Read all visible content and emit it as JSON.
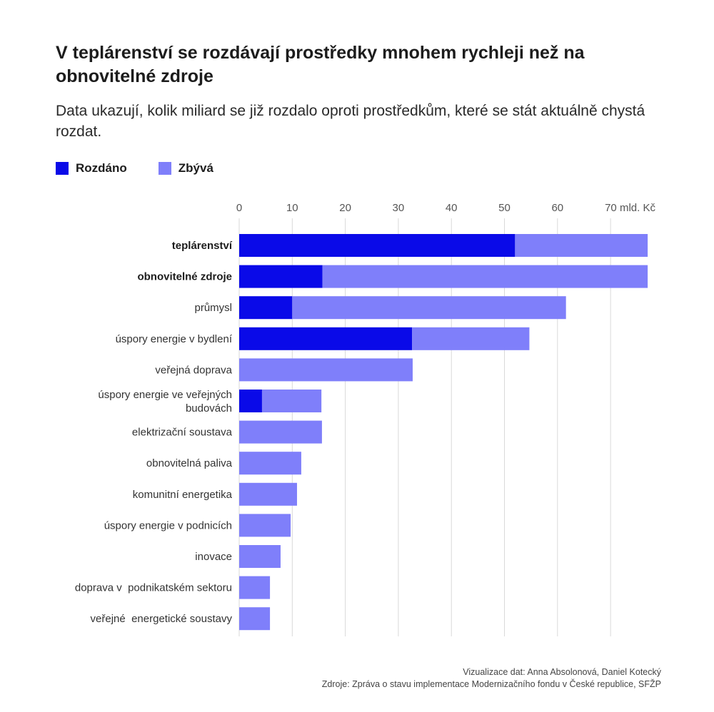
{
  "title": "V teplárenství se rozdávají prostředky mnohem rychleji než na obnovitelné zdroje",
  "subtitle": "Data ukazují, kolik miliard se již rozdalo oproti prostředkům, které se stát aktuálně chystá rozdat.",
  "legend": {
    "given": "Rozdáno",
    "remaining": "Zbývá"
  },
  "colors": {
    "given": "#0a0ae8",
    "remaining": "#7f7ffa",
    "grid": "#d9d9d9"
  },
  "footer": {
    "viz": "Vizualizace dat: Anna Absolonová, Daniel Kotecký",
    "source": "Zdroje: Zpráva o stavu implementace Modernizačního fondu v České republice, SFŽP"
  },
  "chart_data": {
    "type": "bar",
    "orientation": "horizontal",
    "stacked": true,
    "x_ticks": [
      "0",
      "10",
      "20",
      "30",
      "40",
      "50",
      "60",
      "70 mld. Kč"
    ],
    "x_tick_values": [
      0,
      10,
      20,
      30,
      40,
      50,
      60,
      70
    ],
    "xlim": [
      0,
      78
    ],
    "grid": true,
    "legend_position": "top-left",
    "categories": [
      {
        "label": "teplárenství",
        "bold": true
      },
      {
        "label": "obnovitelné zdroje",
        "bold": true
      },
      {
        "label": "průmysl",
        "bold": false
      },
      {
        "label": "úspory energie v bydlení",
        "bold": false
      },
      {
        "label": "veřejná doprava",
        "bold": false
      },
      {
        "label": "úspory energie ve veřejných budovách",
        "bold": false
      },
      {
        "label": "elektrizační soustava",
        "bold": false
      },
      {
        "label": "obnovitelná paliva",
        "bold": false
      },
      {
        "label": "komunitní energetika",
        "bold": false
      },
      {
        "label": "úspory energie v podnicích",
        "bold": false
      },
      {
        "label": "inovace",
        "bold": false
      },
      {
        "label": "doprava v  podnikatském sektoru",
        "bold": false
      },
      {
        "label": "veřejné  energetické soustavy",
        "bold": false
      }
    ],
    "series": [
      {
        "name": "Rozdáno",
        "values": [
          52.0,
          15.7,
          10.0,
          32.6,
          0,
          4.3,
          0,
          0,
          0,
          0,
          0,
          0,
          0
        ]
      },
      {
        "name": "Zbývá",
        "values": [
          25.0,
          61.3,
          51.6,
          22.1,
          32.7,
          11.2,
          15.6,
          11.7,
          10.9,
          9.7,
          7.8,
          5.8,
          5.8
        ]
      }
    ]
  }
}
